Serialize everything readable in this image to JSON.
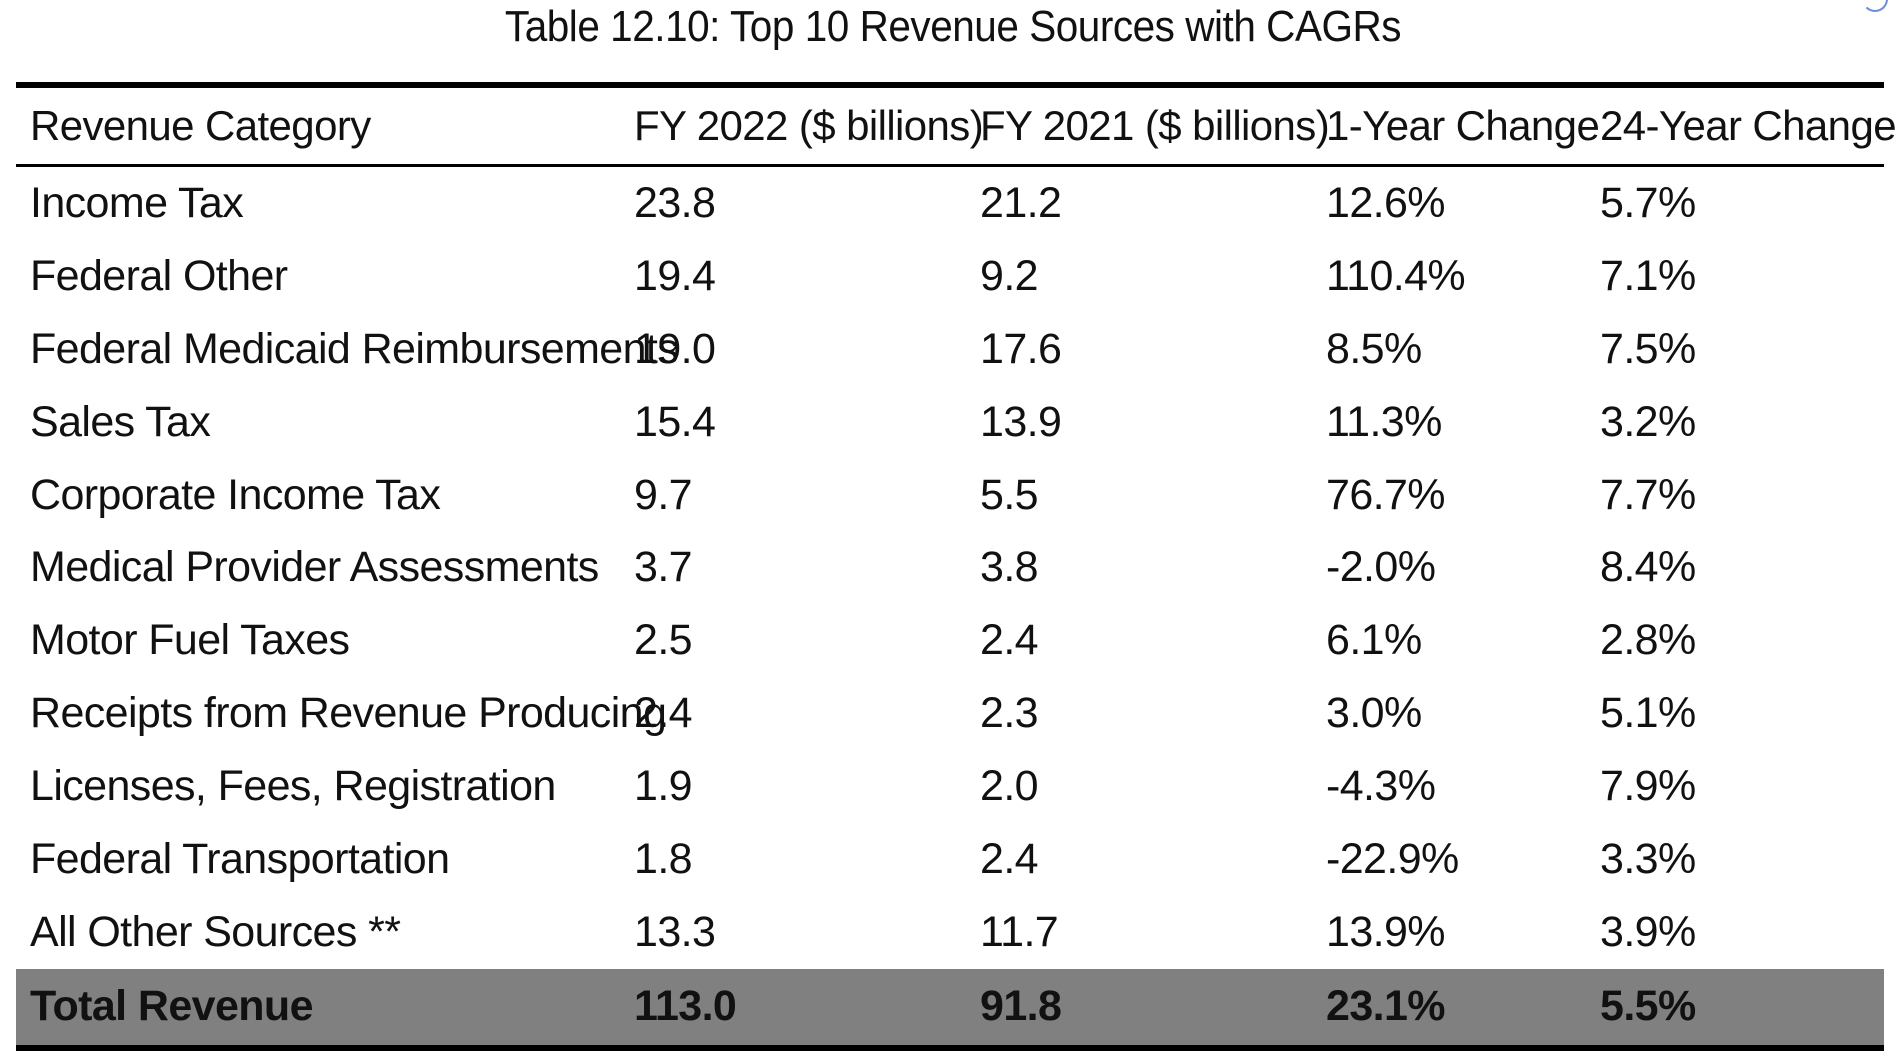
{
  "caption": "Table 12.10: Top 10 Revenue Sources with CAGRs",
  "columns": [
    "Revenue Category",
    "FY 2022 ($ billions)",
    "FY 2021 ($ billions)",
    "1-Year Change",
    "24-Year Change"
  ],
  "rows": [
    [
      "Income Tax",
      "23.8",
      "21.2",
      "12.6%",
      "5.7%"
    ],
    [
      "Federal Other",
      "19.4",
      "9.2",
      "110.4%",
      "7.1%"
    ],
    [
      "Federal Medicaid Reimbursements",
      "19.0",
      "17.6",
      "8.5%",
      "7.5%"
    ],
    [
      "Sales Tax",
      "15.4",
      "13.9",
      "11.3%",
      "3.2%"
    ],
    [
      "Corporate Income Tax",
      "9.7",
      "5.5",
      "76.7%",
      "7.7%"
    ],
    [
      "Medical Provider Assessments",
      "3.7",
      "3.8",
      "-2.0%",
      "8.4%"
    ],
    [
      "Motor Fuel Taxes",
      "2.5",
      "2.4",
      "6.1%",
      "2.8%"
    ],
    [
      "Receipts from Revenue Producing",
      "2.4",
      "2.3",
      "3.0%",
      "5.1%"
    ],
    [
      "Licenses, Fees, Registration",
      "1.9",
      "2.0",
      "-4.3%",
      "7.9%"
    ],
    [
      "Federal Transportation",
      "1.8",
      "2.4",
      "-22.9%",
      "3.3%"
    ],
    [
      "All Other Sources **",
      "13.3",
      "11.7",
      "13.9%",
      "3.9%"
    ]
  ],
  "total": [
    "Total Revenue",
    "113.0",
    "91.8",
    "23.1%",
    "5.5%"
  ],
  "colors": {
    "total_row_bg": "#808080",
    "rule": "#000000",
    "text": "#111111"
  }
}
